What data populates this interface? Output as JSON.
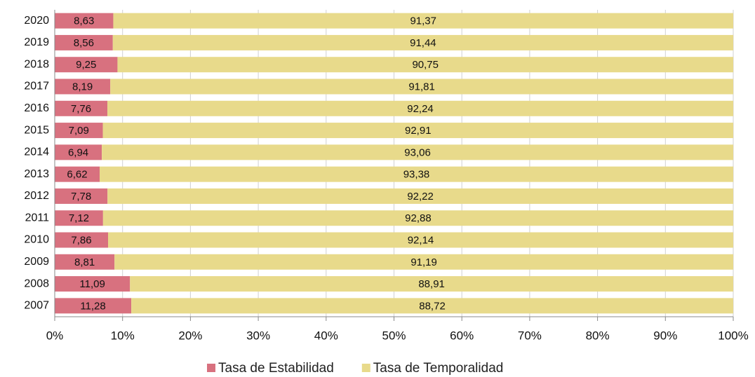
{
  "chart_data": {
    "type": "stacked_barh",
    "categories": [
      "2020",
      "2019",
      "2018",
      "2017",
      "2016",
      "2015",
      "2014",
      "2013",
      "2012",
      "2011",
      "2010",
      "2009",
      "2008",
      "2007"
    ],
    "series": [
      {
        "name": "Tasa de Estabilidad",
        "color": "#d8717f",
        "values": [
          8.63,
          8.56,
          9.25,
          8.19,
          7.76,
          7.09,
          6.94,
          6.62,
          7.78,
          7.12,
          7.86,
          8.81,
          11.09,
          11.28
        ],
        "value_labels": [
          "8,63",
          "8,56",
          "9,25",
          "8,19",
          "7,76",
          "7,09",
          "6,94",
          "6,62",
          "7,78",
          "7,12",
          "7,86",
          "8,81",
          "11,09",
          "11,28"
        ]
      },
      {
        "name": "Tasa de Temporalidad",
        "color": "#e8da8b",
        "values": [
          91.37,
          91.44,
          90.75,
          91.81,
          92.24,
          92.91,
          93.06,
          93.38,
          92.22,
          92.88,
          92.14,
          91.19,
          88.91,
          88.72
        ],
        "value_labels": [
          "91,37",
          "91,44",
          "90,75",
          "91,81",
          "92,24",
          "92,91",
          "93,06",
          "93,38",
          "92,22",
          "92,88",
          "92,14",
          "91,19",
          "88,91",
          "88,72"
        ]
      }
    ],
    "xlim": [
      0,
      100
    ],
    "xticks": [
      {
        "value": 0,
        "label": "0%"
      },
      {
        "value": 10,
        "label": "10%"
      },
      {
        "value": 20,
        "label": "20%"
      },
      {
        "value": 30,
        "label": "30%"
      },
      {
        "value": 40,
        "label": "40%"
      },
      {
        "value": 50,
        "label": "50%"
      },
      {
        "value": 60,
        "label": "60%"
      },
      {
        "value": 70,
        "label": "70%"
      },
      {
        "value": 80,
        "label": "80%"
      },
      {
        "value": 90,
        "label": "90%"
      },
      {
        "value": 100,
        "label": "100%"
      }
    ],
    "legend": "bottom"
  }
}
